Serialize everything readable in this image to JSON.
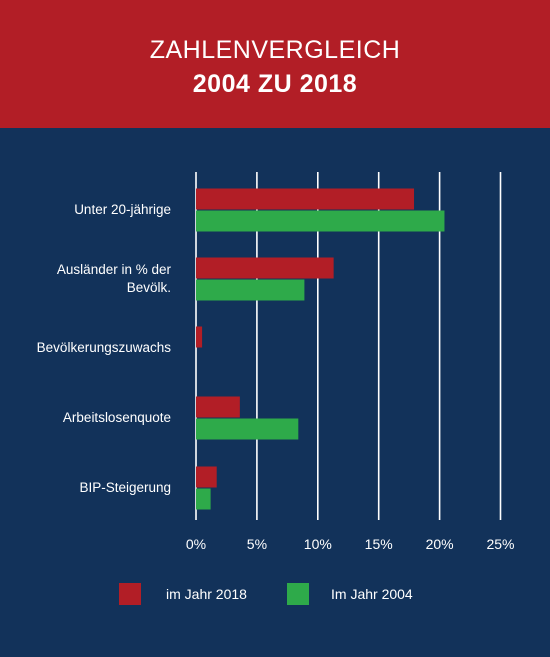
{
  "header": {
    "title_line1": "ZAHLENVERGLEICH",
    "title_line2": "2004 ZU 2018"
  },
  "colors": {
    "background": "#12325a",
    "header": "#b21e26",
    "series_2018": "#b21e26",
    "series_2004": "#2eaa4a",
    "gridline": "#ffffff"
  },
  "chart_data": {
    "type": "bar",
    "orientation": "horizontal",
    "categories": [
      [
        "Unter 20-jährige"
      ],
      [
        "Ausländer in % der",
        "Bevölk."
      ],
      [
        "Bevölkerungszuwachs"
      ],
      [
        "Arbeitslosenquote"
      ],
      [
        "BIP-Steigerung"
      ]
    ],
    "series": [
      {
        "name": "im Jahr 2018",
        "values": [
          17.9,
          11.3,
          0.5,
          3.6,
          1.7
        ]
      },
      {
        "name": "Im Jahr 2004",
        "values": [
          20.4,
          8.9,
          0,
          8.4,
          1.2
        ]
      }
    ],
    "xlim": [
      0,
      25
    ],
    "xticks": [
      0,
      5,
      10,
      15,
      20,
      25
    ],
    "xtick_labels": [
      "0%",
      "5%",
      "10%",
      "15%",
      "20%",
      "25%"
    ],
    "grid": true,
    "legend_position": "bottom"
  }
}
